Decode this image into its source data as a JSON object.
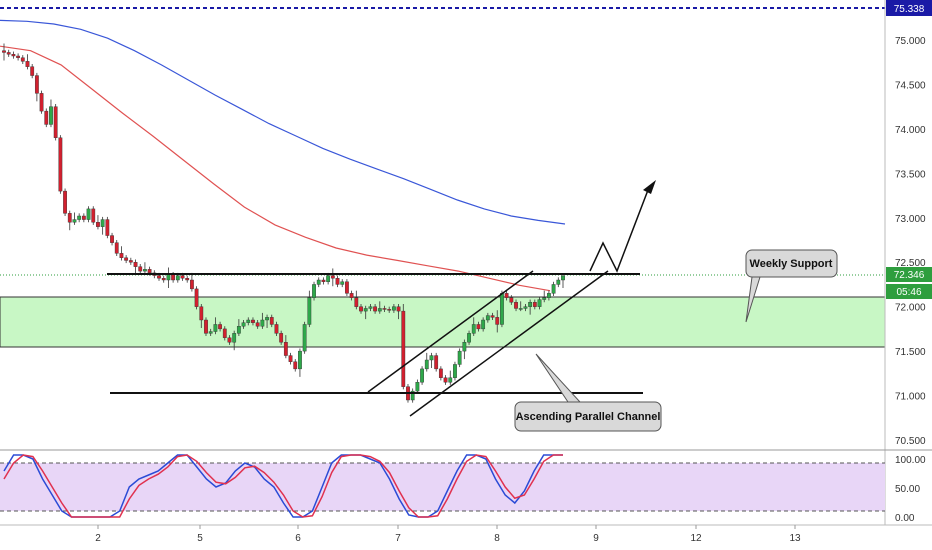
{
  "chart_data": {
    "type": "candlestick",
    "price_axis": {
      "ticks": [
        "75.000",
        "74.500",
        "74.000",
        "73.500",
        "73.000",
        "72.500",
        "72.000",
        "71.500",
        "71.000",
        "70.500"
      ],
      "tick_values": [
        75.0,
        74.5,
        74.0,
        73.5,
        73.0,
        72.5,
        72.0,
        71.5,
        71.0,
        70.5
      ],
      "range": [
        70.5,
        75.35
      ]
    },
    "time_axis": {
      "ticks": [
        "2",
        "5",
        "6",
        "7",
        "8",
        "9",
        "12",
        "13"
      ]
    },
    "badges": {
      "top_price": "75.338",
      "current_price": "72.346",
      "countdown": "05:46"
    },
    "levels": {
      "top_dashed": 75.338,
      "current_price": 72.346,
      "support_top": 72.38,
      "zone_upper": 72.1,
      "zone_lower": 71.55,
      "bottom_line": 71.03
    },
    "series": [
      {
        "name": "",
        "color": "#3a57d8",
        "values_start": [
          75.22,
          75.21,
          75.18,
          75.12,
          75.02,
          74.88,
          74.72,
          74.55,
          74.38,
          74.22,
          74.06,
          73.92,
          73.78,
          73.66,
          73.55,
          73.44,
          73.32,
          73.2,
          73.1,
          73.02,
          72.97,
          72.93
        ]
      },
      {
        "name": "",
        "color": "#e05252",
        "values_start": [
          74.93,
          74.88,
          74.72,
          74.45,
          74.18,
          73.92,
          73.65,
          73.38,
          73.12,
          72.92,
          72.78,
          72.66,
          72.58,
          72.52,
          72.46,
          72.4,
          72.32,
          72.24,
          72.18
        ]
      }
    ],
    "closes": [
      74.86,
      74.84,
      74.82,
      74.8,
      74.76,
      74.7,
      74.6,
      74.4,
      74.2,
      74.05,
      74.25,
      73.9,
      73.3,
      73.05,
      72.95,
      72.98,
      73.02,
      72.98,
      73.1,
      72.95,
      72.9,
      72.98,
      72.8,
      72.72,
      72.6,
      72.55,
      72.52,
      72.5,
      72.45,
      72.4,
      72.42,
      72.38,
      72.35,
      72.32,
      72.3,
      72.36,
      72.3,
      72.35,
      72.32,
      72.3,
      72.2,
      72.0,
      71.85,
      71.7,
      71.72,
      71.8,
      71.75,
      71.65,
      71.6,
      71.7,
      71.78,
      71.82,
      71.85,
      71.82,
      71.78,
      71.85,
      71.88,
      71.8,
      71.7,
      71.6,
      71.45,
      71.38,
      71.3,
      71.5,
      71.8,
      72.1,
      72.25,
      72.3,
      72.28,
      72.35,
      72.32,
      72.25,
      72.28,
      72.15,
      72.1,
      72.0,
      71.95,
      71.98,
      72.0,
      71.95,
      71.98,
      71.97,
      71.96,
      72.0,
      71.95,
      71.1,
      70.95,
      71.05,
      71.15,
      71.3,
      71.4,
      71.45,
      71.3,
      71.2,
      71.15,
      71.2,
      71.35,
      71.5,
      71.6,
      71.7,
      71.8,
      71.75,
      71.85,
      71.9,
      71.88,
      71.8,
      72.15,
      72.1,
      72.05,
      71.98,
      71.98,
      72.0,
      72.05,
      72.0,
      72.08,
      72.1,
      72.15,
      72.25,
      72.3,
      72.346
    ],
    "annotations": {
      "weekly_support": "Weekly Support",
      "channel": "Ascending Parallel Channel"
    },
    "stochastic": {
      "ticks": [
        "100.00",
        "50.00",
        "0.00"
      ],
      "tick_values": [
        100,
        50,
        0
      ],
      "levels": [
        80,
        20
      ],
      "k_color": "#2b4bd6",
      "d_color": "#e0314f",
      "k": [
        70,
        90,
        95,
        85,
        60,
        40,
        20,
        5,
        0,
        10,
        5,
        0,
        20,
        50,
        60,
        65,
        70,
        80,
        95,
        90,
        75,
        60,
        50,
        55,
        70,
        80,
        75,
        60,
        50,
        30,
        10,
        5,
        20,
        50,
        80,
        95,
        95,
        90,
        85,
        80,
        60,
        35,
        15,
        0,
        5,
        20,
        45,
        70,
        90,
        95,
        85,
        60,
        40,
        30,
        45,
        70,
        90,
        95,
        95
      ],
      "d": [
        60,
        80,
        90,
        88,
        70,
        50,
        30,
        12,
        4,
        6,
        6,
        4,
        12,
        35,
        52,
        60,
        66,
        75,
        88,
        92,
        82,
        68,
        56,
        54,
        62,
        74,
        76,
        68,
        56,
        40,
        20,
        9,
        14,
        38,
        68,
        88,
        94,
        92,
        88,
        82,
        68,
        45,
        24,
        8,
        4,
        14,
        35,
        60,
        82,
        92,
        88,
        70,
        50,
        36,
        40,
        60,
        82,
        92,
        95
      ]
    }
  }
}
